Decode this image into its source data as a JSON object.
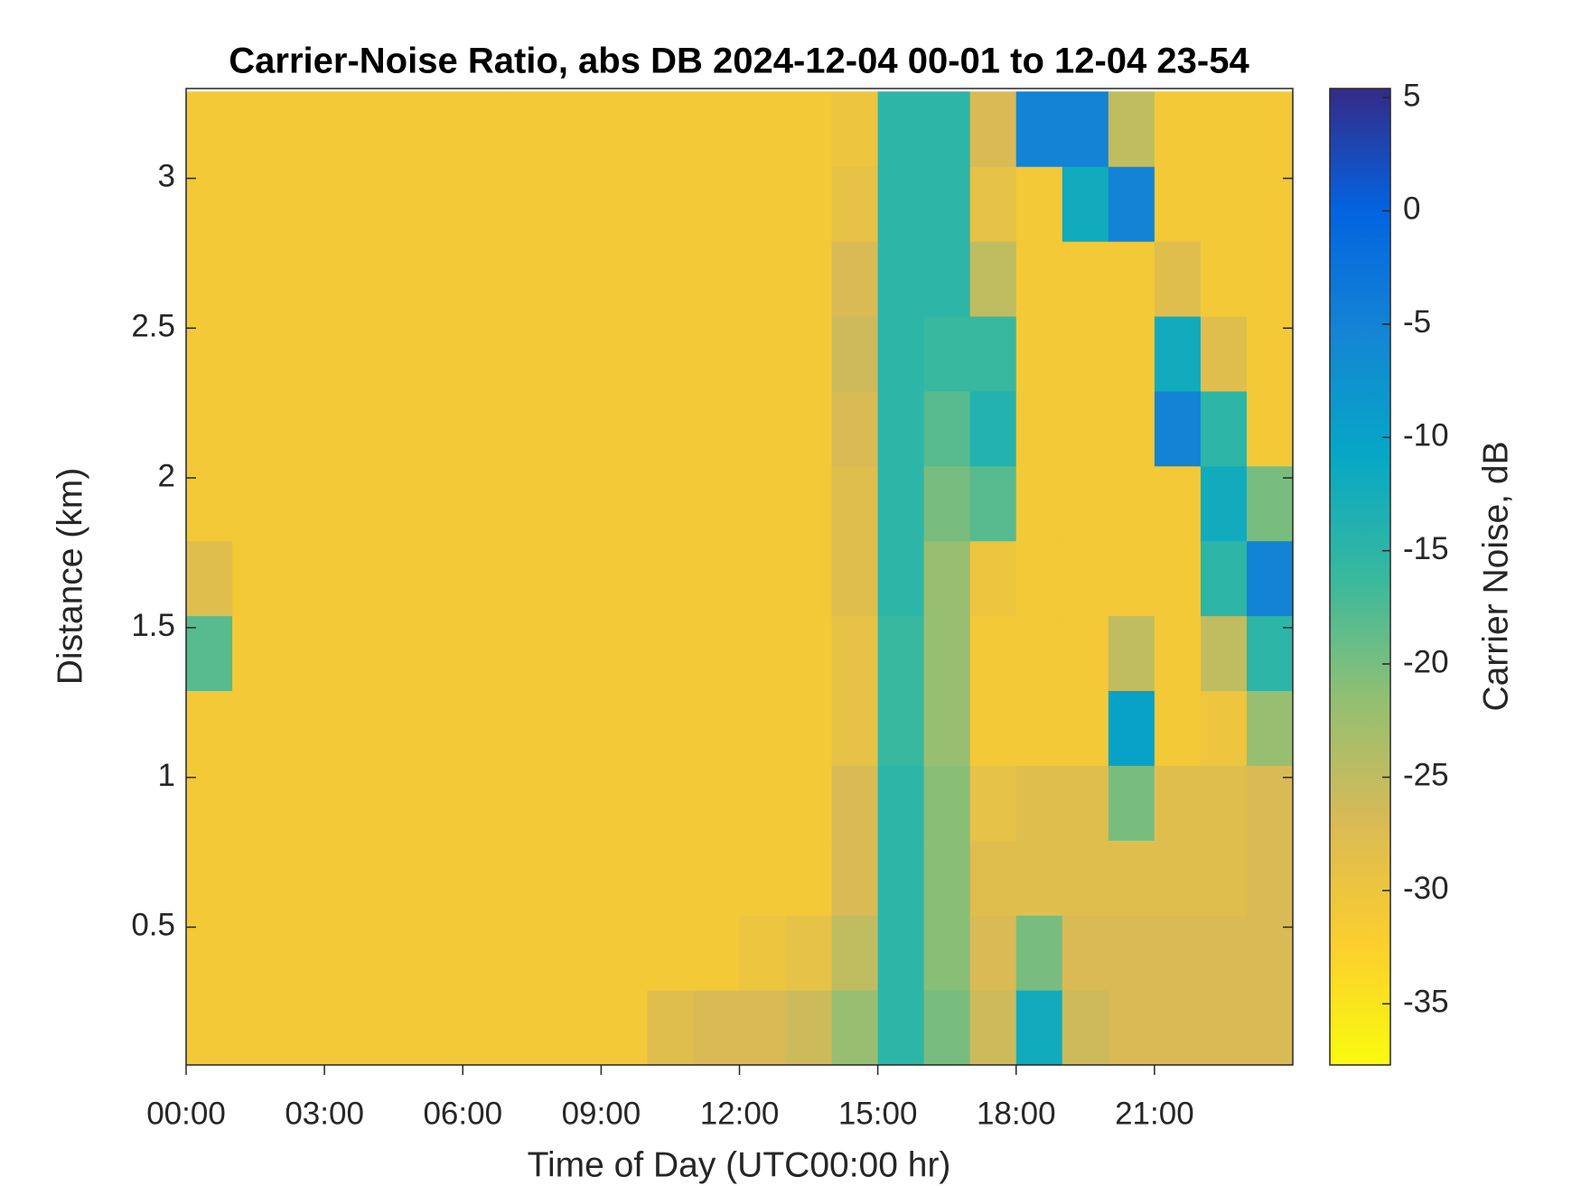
{
  "chart_data": {
    "type": "heatmap",
    "title": "Carrier-Noise Ratio, abs DB 2024-12-04 00-01 to 12-04 23-54",
    "xlabel": "Time of Day (UTC00:00 hr)",
    "ylabel": "Distance (km)",
    "colorbar_label": "Carrier Noise, dB",
    "colormap": "parula",
    "colormap_reversed": true,
    "grid": false,
    "x": [
      0.5,
      1.5,
      2.5,
      3.5,
      4.5,
      5.5,
      6.5,
      7.5,
      8.5,
      9.5,
      10.5,
      11.5,
      12.5,
      13.5,
      14.5,
      15.5,
      16.5,
      17.5,
      18.5,
      19.5,
      20.5,
      21.5,
      22.5,
      23.5
    ],
    "y": [
      0.165,
      0.415,
      0.665,
      0.915,
      1.165,
      1.415,
      1.665,
      1.915,
      2.165,
      2.415,
      2.665,
      2.915,
      3.165
    ],
    "values": [
      [
        -31,
        -31,
        -31,
        -31,
        -31,
        -31,
        -31,
        -31,
        -31,
        -31,
        -28,
        -27,
        -27,
        -26,
        -22,
        -15,
        -20,
        -26,
        -12,
        -26,
        -27,
        -27,
        -27,
        -27
      ],
      [
        -31,
        -31,
        -31,
        -31,
        -31,
        -31,
        -31,
        -31,
        -31,
        -31,
        -31,
        -31,
        -30,
        -29,
        -25,
        -15,
        -21,
        -27,
        -20,
        -27,
        -27,
        -27,
        -27,
        -27
      ],
      [
        -31,
        -31,
        -31,
        -31,
        -31,
        -31,
        -31,
        -31,
        -31,
        -31,
        -31,
        -31,
        -31,
        -31,
        -27,
        -15,
        -21,
        -28,
        -28,
        -28,
        -28,
        -28,
        -28,
        -27
      ],
      [
        -31,
        -31,
        -31,
        -31,
        -31,
        -31,
        -31,
        -31,
        -31,
        -31,
        -31,
        -31,
        -31,
        -31,
        -27,
        -15,
        -21,
        -29,
        -28,
        -28,
        -20,
        -28,
        -28,
        -27
      ],
      [
        -31,
        -31,
        -31,
        -31,
        -31,
        -31,
        -31,
        -31,
        -31,
        -31,
        -31,
        -31,
        -31,
        -31,
        -29,
        -16,
        -22,
        -31,
        -31,
        -31,
        -10,
        -31,
        -30,
        -22
      ],
      [
        -18,
        -31,
        -31,
        -31,
        -31,
        -31,
        -31,
        -31,
        -31,
        -31,
        -31,
        -31,
        -31,
        -31,
        -29,
        -16,
        -22,
        -31,
        -31,
        -31,
        -25,
        -31,
        -25,
        -15
      ],
      [
        -28,
        -31,
        -31,
        -31,
        -31,
        -31,
        -31,
        -31,
        -31,
        -31,
        -31,
        -31,
        -31,
        -31,
        -28,
        -15,
        -22,
        -30,
        -31,
        -31,
        -31,
        -31,
        -15,
        -5
      ],
      [
        -31,
        -31,
        -31,
        -31,
        -31,
        -31,
        -31,
        -31,
        -31,
        -31,
        -31,
        -31,
        -31,
        -31,
        -28,
        -15,
        -20,
        -18,
        -31,
        -31,
        -31,
        -31,
        -12,
        -20
      ],
      [
        -31,
        -31,
        -31,
        -31,
        -31,
        -31,
        -31,
        -31,
        -31,
        -31,
        -31,
        -31,
        -31,
        -31,
        -27,
        -15,
        -18,
        -14,
        -31,
        -31,
        -31,
        -5,
        -15,
        -31
      ],
      [
        -31,
        -31,
        -31,
        -31,
        -31,
        -31,
        -31,
        -31,
        -31,
        -31,
        -31,
        -31,
        -31,
        -31,
        -26,
        -15,
        -16,
        -16,
        -31,
        -31,
        -31,
        -12,
        -28,
        -31
      ],
      [
        -31,
        -31,
        -31,
        -31,
        -31,
        -31,
        -31,
        -31,
        -31,
        -31,
        -31,
        -31,
        -31,
        -31,
        -27,
        -15,
        -15,
        -25,
        -31,
        -31,
        -31,
        -28,
        -31,
        -31
      ],
      [
        -31,
        -31,
        -31,
        -31,
        -31,
        -31,
        -31,
        -31,
        -31,
        -31,
        -31,
        -31,
        -31,
        -31,
        -29,
        -15,
        -15,
        -29,
        -31,
        -12,
        -5,
        -31,
        -31,
        -31
      ],
      [
        -31,
        -31,
        -31,
        -31,
        -31,
        -31,
        -31,
        -31,
        -31,
        -31,
        -31,
        -31,
        -31,
        -31,
        -30,
        -15,
        -15,
        -27,
        -5,
        -5,
        -25,
        -31,
        -31,
        -31
      ]
    ],
    "xlim": [
      0,
      24
    ],
    "xticks": [
      {
        "value": 0,
        "label": "00:00"
      },
      {
        "value": 3,
        "label": "03:00"
      },
      {
        "value": 6,
        "label": "06:00"
      },
      {
        "value": 9,
        "label": "09:00"
      },
      {
        "value": 12,
        "label": "12:00"
      },
      {
        "value": 15,
        "label": "15:00"
      },
      {
        "value": 18,
        "label": "18:00"
      },
      {
        "value": 21,
        "label": "21:00"
      }
    ],
    "ylim": [
      0.04,
      3.3
    ],
    "yticks": [
      0.5,
      1,
      1.5,
      2,
      2.5,
      3
    ],
    "clim": [
      -37.7,
      5.4
    ],
    "cticks": [
      -35,
      -30,
      -25,
      -20,
      -15,
      -10,
      -5,
      0,
      5
    ]
  }
}
